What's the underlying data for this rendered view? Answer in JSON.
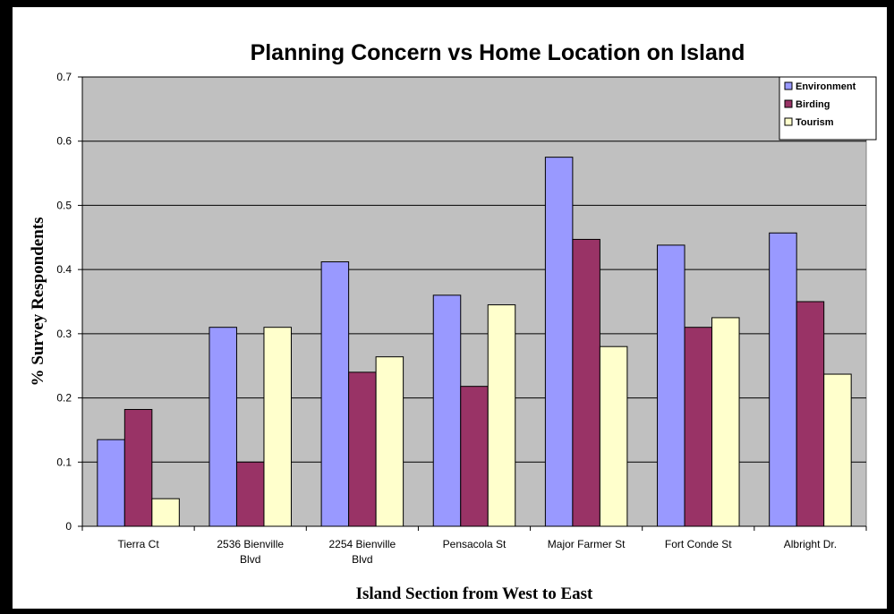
{
  "chart_data": {
    "type": "bar",
    "title": "Planning Concern vs Home Location on Island",
    "xlabel": "Island Section from West to East",
    "ylabel": "% Survey Respondents",
    "ylim": [
      0,
      0.7
    ],
    "yticks": [
      "0",
      "0.1",
      "0.2",
      "0.3",
      "0.4",
      "0.5",
      "0.6",
      "0.7"
    ],
    "grid": true,
    "legend_position": "top-right",
    "categories": [
      [
        "Tierra Ct"
      ],
      [
        "2536 Bienville",
        "Blvd"
      ],
      [
        "2254 Bienville",
        "Blvd"
      ],
      [
        "Pensacola St"
      ],
      [
        "Major Farmer St"
      ],
      [
        "Fort Conde St"
      ],
      [
        "Albright Dr."
      ]
    ],
    "series": [
      {
        "name": "Environment",
        "color": "#9999ff",
        "values": [
          0.135,
          0.31,
          0.412,
          0.36,
          0.575,
          0.438,
          0.457
        ]
      },
      {
        "name": "Birding",
        "color": "#993366",
        "values": [
          0.182,
          0.1,
          0.24,
          0.218,
          0.447,
          0.31,
          0.35
        ]
      },
      {
        "name": "Tourism",
        "color": "#ffffcc",
        "values": [
          0.043,
          0.31,
          0.264,
          0.345,
          0.28,
          0.325,
          0.237
        ]
      }
    ],
    "colors": {
      "plot_background": "#c0c0c0",
      "page_background": "#ffffff",
      "frame": "#000000"
    }
  }
}
